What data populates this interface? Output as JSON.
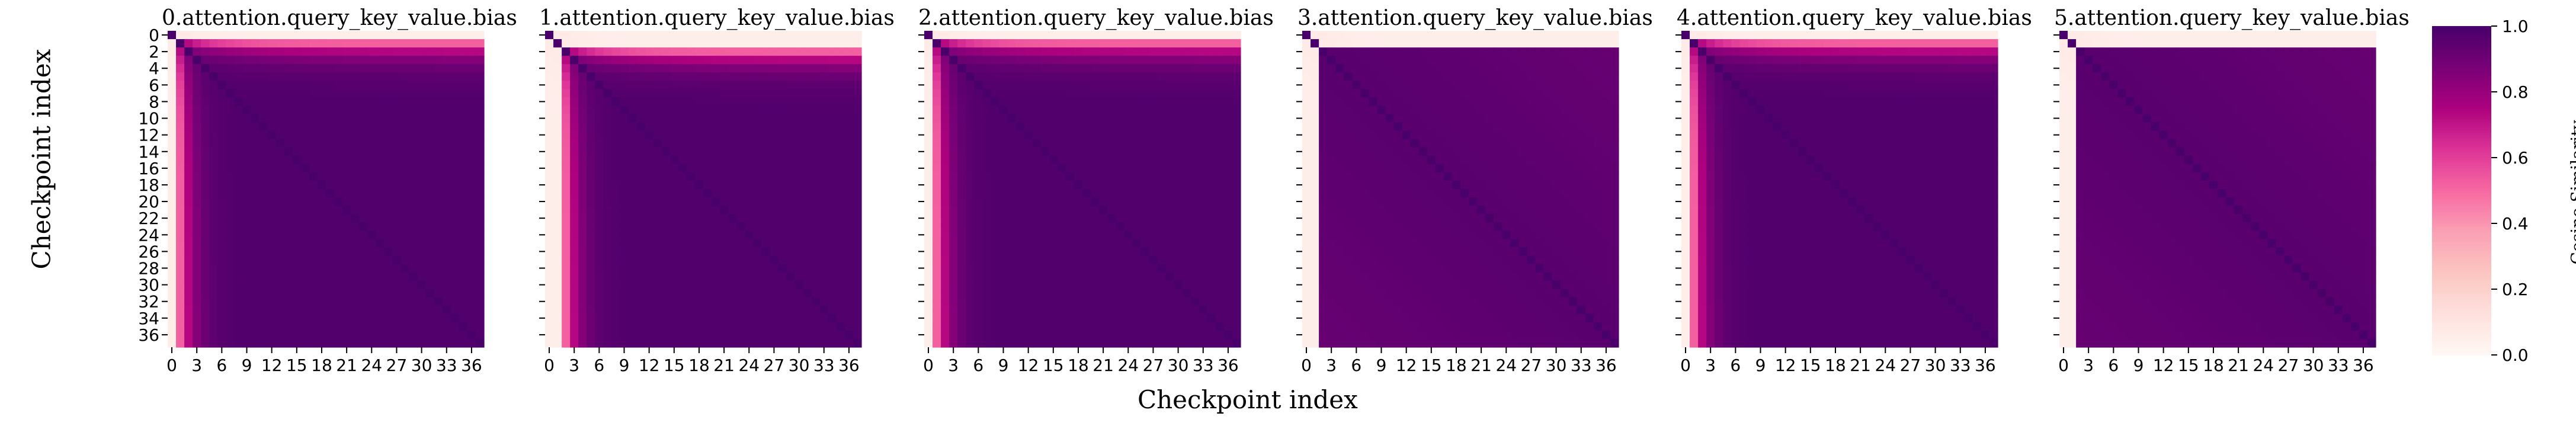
{
  "chart_data": {
    "type": "heatmap",
    "panels": [
      {
        "title": "0.attention.query_key_value.bias",
        "onset": 1,
        "early": [
          1,
          1
        ],
        "show_y_ticks": true
      },
      {
        "title": "1.attention.query_key_value.bias",
        "onset": 2,
        "early": [
          2,
          3,
          5,
          6
        ],
        "show_y_ticks": false
      },
      {
        "title": "2.attention.query_key_value.bias",
        "onset": 1,
        "early": [
          1,
          2
        ],
        "show_y_ticks": false
      },
      {
        "title": "3.attention.query_key_value.bias",
        "onset": 2,
        "early": [],
        "show_y_ticks": false
      },
      {
        "title": "4.attention.query_key_value.bias",
        "onset": 1,
        "early": [
          1,
          2
        ],
        "show_y_ticks": false
      },
      {
        "title": "5.attention.query_key_value.bias",
        "onset": 2,
        "early": [],
        "show_y_ticks": false
      }
    ],
    "n_checkpoints": 38,
    "x_ticks": [
      "0",
      "3",
      "6",
      "9",
      "12",
      "15",
      "18",
      "21",
      "24",
      "27",
      "30",
      "33",
      "36"
    ],
    "y_ticks": [
      "0",
      "2",
      "4",
      "6",
      "8",
      "10",
      "12",
      "14",
      "16",
      "18",
      "20",
      "22",
      "24",
      "26",
      "28",
      "30",
      "32",
      "34",
      "36"
    ],
    "xlabel": "Checkpoint index",
    "ylabel": "Checkpoint index",
    "colorbar": {
      "label": "Cosine Similarity",
      "range": [
        0.0,
        1.0
      ],
      "ticks": [
        "0.0",
        "0.2",
        "0.4",
        "0.6",
        "0.8",
        "1.0"
      ],
      "colormap": "RdPu",
      "stops": [
        "#fff7f3",
        "#fde0dd",
        "#fcc5c0",
        "#fa9fb5",
        "#f768a1",
        "#dd3497",
        "#ae017e",
        "#7a0177",
        "#49006a"
      ]
    }
  }
}
